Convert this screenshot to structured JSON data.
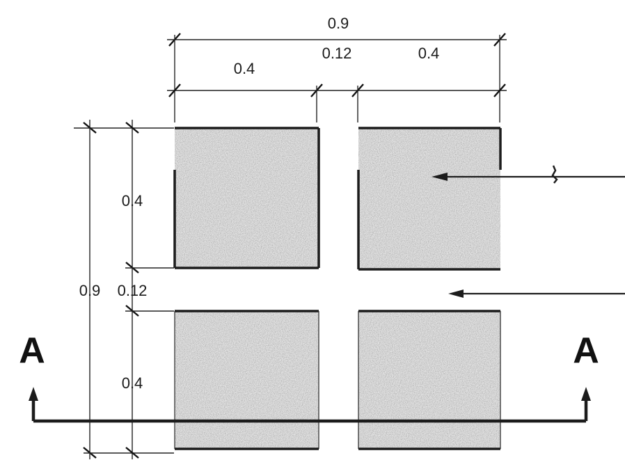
{
  "diagram": {
    "dimensions": {
      "overall_width": "0.9",
      "left_width": "0.4",
      "gap_width": "0.12",
      "right_width": "0.4",
      "overall_height": "0.9",
      "top_height": "0.4",
      "gap_height": "0.12",
      "bottom_height": "0.4"
    },
    "section": {
      "left_label": "A",
      "right_label": "A"
    },
    "colors": {
      "line": "#1c1c1c",
      "fill": "#e4e4e4",
      "background": "#ffffff"
    }
  }
}
